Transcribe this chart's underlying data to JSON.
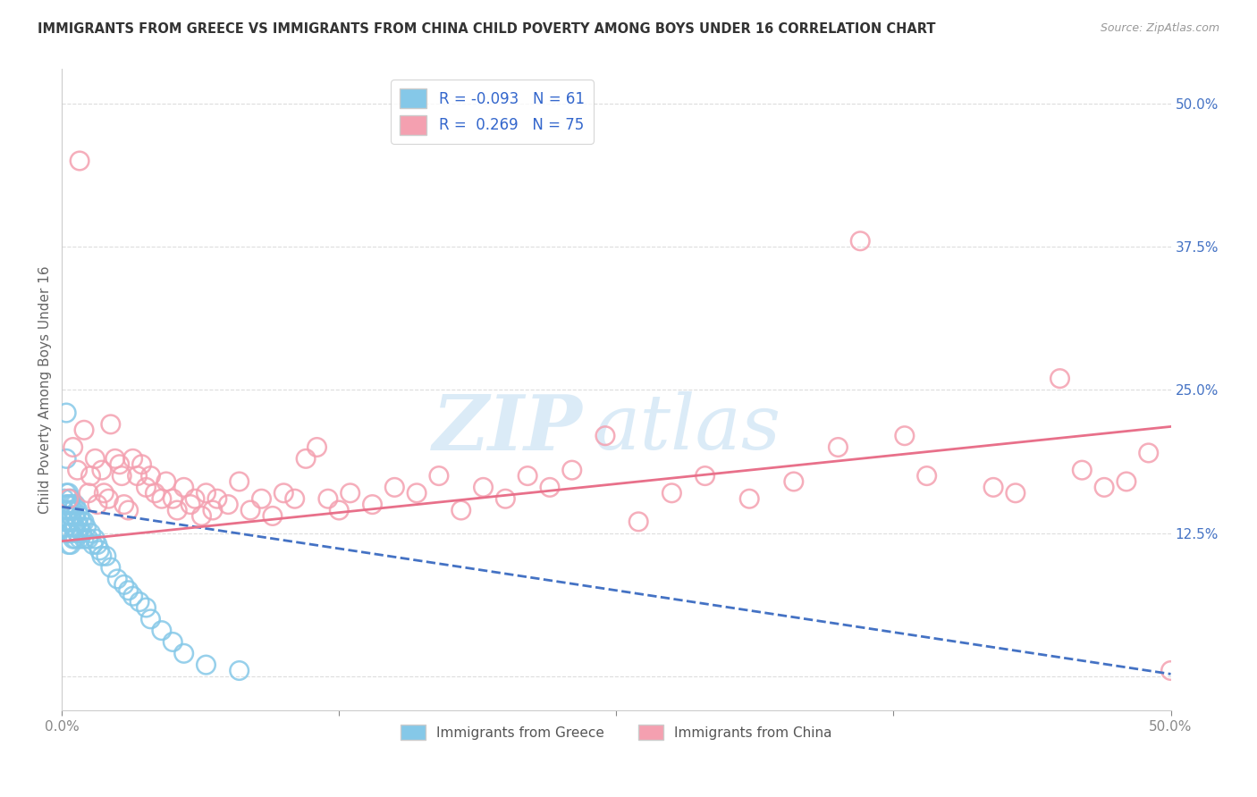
{
  "title": "IMMIGRANTS FROM GREECE VS IMMIGRANTS FROM CHINA CHILD POVERTY AMONG BOYS UNDER 16 CORRELATION CHART",
  "source": "Source: ZipAtlas.com",
  "ylabel": "Child Poverty Among Boys Under 16",
  "right_yticks": [
    0.0,
    0.125,
    0.25,
    0.375,
    0.5
  ],
  "right_yticklabels": [
    "",
    "12.5%",
    "25.0%",
    "37.5%",
    "50.0%"
  ],
  "xlim": [
    0.0,
    0.5
  ],
  "ylim": [
    -0.03,
    0.53
  ],
  "legend_r_greece": "-0.093",
  "legend_n_greece": "61",
  "legend_r_china": "0.269",
  "legend_n_china": "75",
  "watermark_zip": "ZIP",
  "watermark_atlas": "atlas",
  "color_greece": "#85C8E8",
  "color_china": "#F4A0B0",
  "color_greece_line": "#4472C4",
  "color_china_line": "#E8708A",
  "color_axis_right": "#4472C4",
  "greece_x": [
    0.001,
    0.001,
    0.001,
    0.002,
    0.002,
    0.002,
    0.002,
    0.002,
    0.003,
    0.003,
    0.003,
    0.003,
    0.003,
    0.003,
    0.004,
    0.004,
    0.004,
    0.004,
    0.004,
    0.004,
    0.005,
    0.005,
    0.005,
    0.005,
    0.005,
    0.006,
    0.006,
    0.006,
    0.006,
    0.007,
    0.007,
    0.007,
    0.008,
    0.008,
    0.008,
    0.009,
    0.009,
    0.01,
    0.01,
    0.011,
    0.012,
    0.013,
    0.014,
    0.015,
    0.016,
    0.017,
    0.018,
    0.02,
    0.022,
    0.025,
    0.028,
    0.03,
    0.032,
    0.035,
    0.038,
    0.04,
    0.045,
    0.05,
    0.055,
    0.065,
    0.08
  ],
  "greece_y": [
    0.155,
    0.145,
    0.135,
    0.23,
    0.19,
    0.16,
    0.15,
    0.13,
    0.16,
    0.15,
    0.145,
    0.135,
    0.125,
    0.115,
    0.155,
    0.15,
    0.14,
    0.135,
    0.125,
    0.115,
    0.15,
    0.145,
    0.135,
    0.13,
    0.12,
    0.15,
    0.14,
    0.13,
    0.12,
    0.145,
    0.135,
    0.125,
    0.14,
    0.13,
    0.12,
    0.135,
    0.125,
    0.135,
    0.12,
    0.13,
    0.12,
    0.125,
    0.115,
    0.12,
    0.115,
    0.11,
    0.105,
    0.105,
    0.095,
    0.085,
    0.08,
    0.075,
    0.07,
    0.065,
    0.06,
    0.05,
    0.04,
    0.03,
    0.02,
    0.01,
    0.005
  ],
  "china_x": [
    0.003,
    0.005,
    0.007,
    0.008,
    0.01,
    0.012,
    0.013,
    0.015,
    0.016,
    0.018,
    0.019,
    0.021,
    0.022,
    0.024,
    0.026,
    0.027,
    0.028,
    0.03,
    0.032,
    0.034,
    0.036,
    0.038,
    0.04,
    0.042,
    0.045,
    0.047,
    0.05,
    0.052,
    0.055,
    0.058,
    0.06,
    0.063,
    0.065,
    0.068,
    0.07,
    0.075,
    0.08,
    0.085,
    0.09,
    0.095,
    0.1,
    0.105,
    0.11,
    0.115,
    0.12,
    0.125,
    0.13,
    0.14,
    0.15,
    0.16,
    0.17,
    0.18,
    0.19,
    0.2,
    0.21,
    0.22,
    0.23,
    0.245,
    0.26,
    0.275,
    0.29,
    0.31,
    0.33,
    0.36,
    0.39,
    0.42,
    0.45,
    0.47,
    0.49,
    0.35,
    0.38,
    0.43,
    0.46,
    0.48,
    0.5
  ],
  "china_y": [
    0.155,
    0.2,
    0.18,
    0.45,
    0.215,
    0.16,
    0.175,
    0.19,
    0.15,
    0.18,
    0.16,
    0.155,
    0.22,
    0.19,
    0.185,
    0.175,
    0.15,
    0.145,
    0.19,
    0.175,
    0.185,
    0.165,
    0.175,
    0.16,
    0.155,
    0.17,
    0.155,
    0.145,
    0.165,
    0.15,
    0.155,
    0.14,
    0.16,
    0.145,
    0.155,
    0.15,
    0.17,
    0.145,
    0.155,
    0.14,
    0.16,
    0.155,
    0.19,
    0.2,
    0.155,
    0.145,
    0.16,
    0.15,
    0.165,
    0.16,
    0.175,
    0.145,
    0.165,
    0.155,
    0.175,
    0.165,
    0.18,
    0.21,
    0.135,
    0.16,
    0.175,
    0.155,
    0.17,
    0.38,
    0.175,
    0.165,
    0.26,
    0.165,
    0.195,
    0.2,
    0.21,
    0.16,
    0.18,
    0.17,
    0.005
  ],
  "greece_trend_x": [
    0.0,
    0.5
  ],
  "greece_trend_y_start": 0.148,
  "greece_trend_y_end": 0.002,
  "china_trend_x": [
    0.0,
    0.5
  ],
  "china_trend_y_start": 0.118,
  "china_trend_y_end": 0.218,
  "background_color": "#FFFFFF",
  "grid_color": "#DDDDDD"
}
